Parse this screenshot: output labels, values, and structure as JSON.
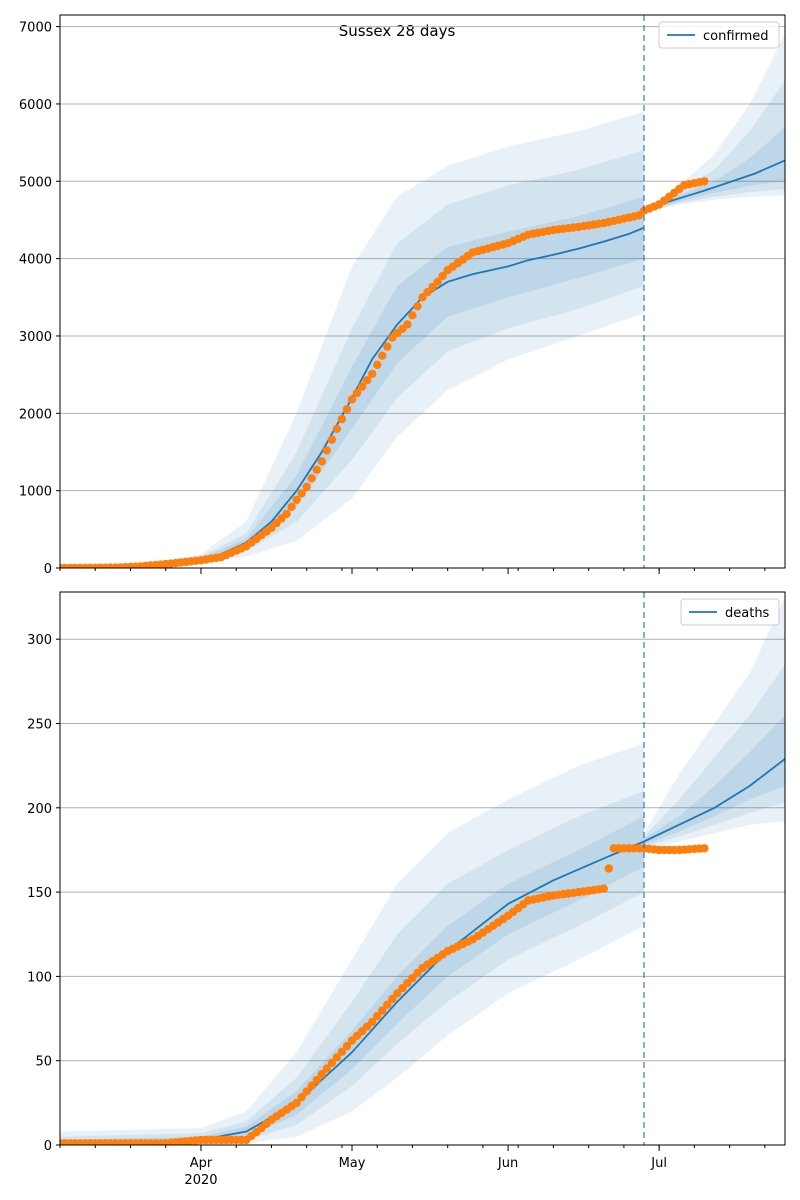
{
  "figure": {
    "title": "Sussex 28 days"
  },
  "x_axis": {
    "tick_labels": [
      "Apr",
      "May",
      "Jun",
      "Jul"
    ],
    "tick_dates": [
      "2020-04-01",
      "2020-05-01",
      "2020-06-01",
      "2020-07-01"
    ],
    "year_label": "2020",
    "range": [
      "2020-03-04",
      "2020-07-26"
    ]
  },
  "colors": {
    "model_line": "#1f77b4",
    "observed_points": "#ff7f0e",
    "band": "#1f77b4",
    "grid": "#b0b0b0",
    "vline": "#1f77b4"
  },
  "chart_data": [
    {
      "type": "line",
      "name": "confirmed",
      "title": "Sussex 28 days",
      "legend": "top-right",
      "grid": "horizontal",
      "ylim": [
        0,
        7150
      ],
      "yticks": [
        0,
        1000,
        2000,
        3000,
        4000,
        5000,
        6000,
        7000
      ],
      "forecast_start": "2020-06-28",
      "observed_end": "2020-07-10",
      "series": [
        {
          "name": "confirmed",
          "kind": "model",
          "x": [
            "2020-03-04",
            "2020-03-20",
            "2020-03-25",
            "2020-04-01",
            "2020-04-05",
            "2020-04-10",
            "2020-04-15",
            "2020-04-20",
            "2020-04-25",
            "2020-05-01",
            "2020-05-05",
            "2020-05-10",
            "2020-05-15",
            "2020-05-20",
            "2020-05-25",
            "2020-06-01",
            "2020-06-05",
            "2020-06-10",
            "2020-06-15",
            "2020-06-20",
            "2020-06-25",
            "2020-06-28"
          ],
          "y": [
            0,
            10,
            40,
            120,
            180,
            330,
            600,
            1000,
            1500,
            2200,
            2700,
            3150,
            3500,
            3700,
            3800,
            3900,
            3980,
            4050,
            4130,
            4220,
            4320,
            4400
          ]
        },
        {
          "name": "confirmed-forecast",
          "kind": "model",
          "x": [
            "2020-06-28",
            "2020-07-01",
            "2020-07-05",
            "2020-07-10",
            "2020-07-15",
            "2020-07-20",
            "2020-07-26"
          ],
          "y": [
            4600,
            4700,
            4780,
            4880,
            4990,
            5100,
            5270
          ]
        },
        {
          "name": "confirmed-observed",
          "kind": "observed",
          "x": [
            "2020-03-04",
            "2020-03-15",
            "2020-03-20",
            "2020-03-25",
            "2020-04-01",
            "2020-04-05",
            "2020-04-10",
            "2020-04-15",
            "2020-04-18",
            "2020-04-20",
            "2020-04-22",
            "2020-04-25",
            "2020-04-28",
            "2020-05-01",
            "2020-05-05",
            "2020-05-09",
            "2020-05-12",
            "2020-05-15",
            "2020-05-18",
            "2020-05-20",
            "2020-05-25",
            "2020-06-01",
            "2020-06-05",
            "2020-06-10",
            "2020-06-15",
            "2020-06-20",
            "2020-06-25",
            "2020-06-27",
            "2020-06-28",
            "2020-07-01",
            "2020-07-03",
            "2020-07-06",
            "2020-07-10"
          ],
          "y": [
            0,
            5,
            20,
            50,
            100,
            140,
            280,
            520,
            700,
            880,
            1050,
            1380,
            1800,
            2180,
            2510,
            2980,
            3150,
            3500,
            3700,
            3850,
            4080,
            4200,
            4310,
            4370,
            4410,
            4460,
            4530,
            4560,
            4620,
            4700,
            4800,
            4950,
            5000
          ]
        }
      ],
      "bands": [
        {
          "level": "outer",
          "x": [
            "2020-03-04",
            "2020-03-20",
            "2020-04-01",
            "2020-04-10",
            "2020-04-20",
            "2020-05-01",
            "2020-05-10",
            "2020-05-20",
            "2020-06-01",
            "2020-06-15",
            "2020-06-28"
          ],
          "lower": [
            0,
            5,
            60,
            150,
            350,
            900,
            1700,
            2300,
            2700,
            3000,
            3300
          ],
          "upper": [
            0,
            20,
            180,
            600,
            2000,
            3900,
            4800,
            5200,
            5450,
            5650,
            5900
          ]
        },
        {
          "level": "middle",
          "x": [
            "2020-03-04",
            "2020-03-20",
            "2020-04-01",
            "2020-04-10",
            "2020-04-20",
            "2020-05-01",
            "2020-05-10",
            "2020-05-20",
            "2020-06-01",
            "2020-06-15",
            "2020-06-28"
          ],
          "lower": [
            0,
            7,
            80,
            220,
            600,
            1400,
            2200,
            2800,
            3100,
            3350,
            3650
          ],
          "upper": [
            0,
            15,
            150,
            450,
            1500,
            3100,
            4200,
            4700,
            4950,
            5150,
            5400
          ]
        },
        {
          "level": "inner",
          "x": [
            "2020-03-04",
            "2020-03-20",
            "2020-04-01",
            "2020-04-10",
            "2020-04-20",
            "2020-05-01",
            "2020-05-10",
            "2020-05-20",
            "2020-06-01",
            "2020-06-15",
            "2020-06-28"
          ],
          "lower": [
            0,
            9,
            100,
            280,
            800,
            1800,
            2650,
            3250,
            3500,
            3750,
            4000
          ],
          "upper": [
            0,
            12,
            130,
            380,
            1200,
            2600,
            3650,
            4150,
            4350,
            4550,
            4800
          ]
        },
        {
          "level": "forecast-outer",
          "x": [
            "2020-06-28",
            "2020-07-05",
            "2020-07-12",
            "2020-07-19",
            "2020-07-26"
          ],
          "lower": [
            4600,
            4700,
            4760,
            4800,
            4820
          ],
          "upper": [
            4600,
            4950,
            5350,
            6000,
            6900
          ]
        },
        {
          "level": "forecast-middle",
          "x": [
            "2020-06-28",
            "2020-07-05",
            "2020-07-12",
            "2020-07-19",
            "2020-07-26"
          ],
          "lower": [
            4600,
            4720,
            4800,
            4860,
            4900
          ],
          "upper": [
            4600,
            4880,
            5150,
            5650,
            6300
          ]
        },
        {
          "level": "forecast-inner",
          "x": [
            "2020-06-28",
            "2020-07-05",
            "2020-07-12",
            "2020-07-19",
            "2020-07-26"
          ],
          "lower": [
            4600,
            4740,
            4850,
            4940,
            5000
          ],
          "upper": [
            4600,
            4820,
            5000,
            5300,
            5700
          ]
        }
      ]
    },
    {
      "type": "line",
      "name": "deaths",
      "legend": "top-right",
      "grid": "horizontal",
      "ylim": [
        0,
        328
      ],
      "yticks": [
        0,
        50,
        100,
        150,
        200,
        250,
        300
      ],
      "forecast_start": "2020-06-28",
      "observed_end": "2020-07-10",
      "series": [
        {
          "name": "deaths",
          "kind": "model",
          "x": [
            "2020-03-04",
            "2020-03-25",
            "2020-04-01",
            "2020-04-10",
            "2020-04-20",
            "2020-05-01",
            "2020-05-10",
            "2020-05-20",
            "2020-06-01",
            "2020-06-10",
            "2020-06-20",
            "2020-06-28"
          ],
          "y": [
            0,
            1,
            3,
            8,
            25,
            55,
            85,
            115,
            143,
            157,
            170,
            180
          ]
        },
        {
          "name": "deaths-forecast",
          "kind": "model",
          "x": [
            "2020-06-28",
            "2020-07-05",
            "2020-07-12",
            "2020-07-19",
            "2020-07-26"
          ],
          "y": [
            180,
            190,
            200,
            213,
            229
          ]
        },
        {
          "name": "deaths-observed",
          "kind": "observed",
          "x": [
            "2020-03-04",
            "2020-03-25",
            "2020-04-01",
            "2020-04-10",
            "2020-04-13",
            "2020-04-15",
            "2020-04-20",
            "2020-04-25",
            "2020-05-01",
            "2020-05-05",
            "2020-05-10",
            "2020-05-15",
            "2020-05-20",
            "2020-05-25",
            "2020-06-01",
            "2020-06-05",
            "2020-06-10",
            "2020-06-15",
            "2020-06-20",
            "2020-06-22",
            "2020-06-28",
            "2020-07-01",
            "2020-07-05",
            "2020-07-10"
          ],
          "y": [
            1,
            1,
            3,
            3,
            10,
            15,
            25,
            42,
            62,
            73,
            90,
            105,
            115,
            122,
            136,
            145,
            148,
            150,
            152,
            176,
            176,
            175,
            175,
            176
          ]
        }
      ],
      "bands": [
        {
          "level": "outer",
          "x": [
            "2020-03-04",
            "2020-04-01",
            "2020-04-10",
            "2020-04-20",
            "2020-05-01",
            "2020-05-10",
            "2020-05-20",
            "2020-06-01",
            "2020-06-15",
            "2020-06-28"
          ],
          "lower": [
            0,
            0,
            1,
            5,
            20,
            40,
            65,
            90,
            110,
            130
          ],
          "upper": [
            8,
            10,
            20,
            55,
            110,
            155,
            185,
            205,
            225,
            238
          ]
        },
        {
          "level": "middle",
          "x": [
            "2020-03-04",
            "2020-04-01",
            "2020-04-10",
            "2020-04-20",
            "2020-05-01",
            "2020-05-10",
            "2020-05-20",
            "2020-06-01",
            "2020-06-15",
            "2020-06-28"
          ],
          "lower": [
            0,
            1,
            3,
            12,
            35,
            60,
            85,
            110,
            130,
            150
          ],
          "upper": [
            5,
            7,
            14,
            40,
            85,
            125,
            155,
            175,
            195,
            210
          ]
        },
        {
          "level": "inner",
          "x": [
            "2020-03-04",
            "2020-04-01",
            "2020-04-10",
            "2020-04-20",
            "2020-05-01",
            "2020-05-10",
            "2020-05-20",
            "2020-06-01",
            "2020-06-15",
            "2020-06-28"
          ],
          "lower": [
            0,
            2,
            5,
            18,
            45,
            72,
            100,
            125,
            145,
            165
          ],
          "upper": [
            3,
            5,
            11,
            32,
            68,
            100,
            130,
            155,
            175,
            195
          ]
        },
        {
          "level": "forecast-outer",
          "x": [
            "2020-06-28",
            "2020-07-05",
            "2020-07-12",
            "2020-07-19",
            "2020-07-26"
          ],
          "lower": [
            175,
            180,
            185,
            190,
            192
          ],
          "upper": [
            185,
            220,
            250,
            280,
            325
          ]
        },
        {
          "level": "forecast-middle",
          "x": [
            "2020-06-28",
            "2020-07-05",
            "2020-07-12",
            "2020-07-19",
            "2020-07-26"
          ],
          "lower": [
            177,
            183,
            190,
            197,
            203
          ],
          "upper": [
            183,
            205,
            230,
            255,
            285
          ]
        },
        {
          "level": "forecast-inner",
          "x": [
            "2020-06-28",
            "2020-07-05",
            "2020-07-12",
            "2020-07-19",
            "2020-07-26"
          ],
          "lower": [
            178,
            186,
            195,
            205,
            213
          ],
          "upper": [
            182,
            195,
            213,
            233,
            255
          ]
        }
      ]
    }
  ]
}
